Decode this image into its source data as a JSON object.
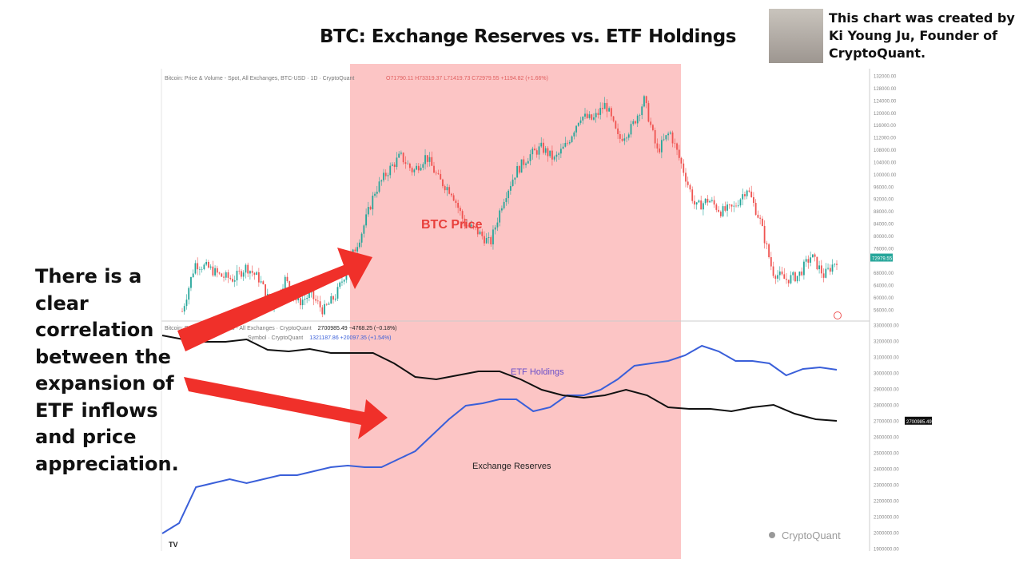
{
  "title": "BTC: Exchange Reserves vs. ETF Holdings",
  "credit": "This chart was created by Ki Young Ju, Founder of CryptoQuant.",
  "annotation": "There is a clear correlation between the expansion of ETF inflows and price appreciation.",
  "colors": {
    "highlight": "#fcc5c5",
    "arrow": "#f0302a",
    "etf": "#3a5fd9",
    "reserves": "#111111",
    "price_label": "#e8403c",
    "last_price_bg": "#26a69a"
  },
  "upper_header": {
    "title": "Bitcoin: Price & Volume - Spot, All Exchanges, BTC-USD · 1D · CryptoQuant",
    "ohlc": "O71790.11 H73319.37 L71419.73 C72979.55 +1194.82 (+1.66%)"
  },
  "lower_header": {
    "line1_title": "Bitcoin: Exchange Reserves - All Exchanges · CryptoQuant",
    "line1_values": "2700985.49 −4768.25 (−0.18%)",
    "line2_title": "Symbol · CryptoQuant",
    "line2_values": "1321187.86 +20097.35 (+1.54%)"
  },
  "watermark": "CryptoQuant",
  "tv_logo": "TV",
  "chart_data": [
    {
      "type": "line",
      "panel": "upper",
      "ylim": [
        54000,
        134000
      ],
      "y_ticks": [
        "132000.00",
        "128000.00",
        "124000.00",
        "120000.00",
        "116000.00",
        "112000.00",
        "108000.00",
        "104000.00",
        "100000.00",
        "96000.00",
        "92000.00",
        "88000.00",
        "84000.00",
        "80000.00",
        "76000.00",
        "68000.00",
        "64000.00",
        "60000.00",
        "56000.00"
      ],
      "last_value_label": "72979.55",
      "series": [
        {
          "name": "BTC Price",
          "values": [
            55500,
            71000,
            69700,
            67000,
            66000,
            70000,
            66000,
            56800,
            66000,
            58300,
            60900,
            55700,
            60900,
            71000,
            81400,
            94400,
            100900,
            106000,
            100900,
            106000,
            98200,
            94400,
            84000,
            81400,
            77500,
            91800,
            100900,
            106000,
            108700,
            104800,
            110000,
            119000,
            117700,
            122900,
            111200,
            115100,
            124200,
            107400,
            113800,
            102000,
            89200,
            91800,
            87900,
            89200,
            95700,
            85300,
            68400,
            65800,
            67100,
            73600,
            67100,
            72300
          ]
        }
      ]
    },
    {
      "type": "line",
      "panel": "lower",
      "ylim": [
        1900000,
        3300000
      ],
      "y_ticks": [
        "3300000.00",
        "3200000.00",
        "3100000.00",
        "3000000.00",
        "2900000.00",
        "2800000.00",
        "2700000.00",
        "2600000.00",
        "2500000.00",
        "2400000.00",
        "2300000.00",
        "2200000.00",
        "2100000.00",
        "2000000.00",
        "1900000.00"
      ],
      "last_value_label": "2700985.49",
      "series": [
        {
          "name": "ETF Holdings",
          "values": [
            1995000,
            2060000,
            2285000,
            2310000,
            2335000,
            2310000,
            2335000,
            2360000,
            2360000,
            2385000,
            2410000,
            2420000,
            2410000,
            2410000,
            2460000,
            2510000,
            2610000,
            2710000,
            2795000,
            2810000,
            2835000,
            2835000,
            2760000,
            2785000,
            2860000,
            2860000,
            2895000,
            2960000,
            3045000,
            3060000,
            3075000,
            3110000,
            3170000,
            3135000,
            3075000,
            3075000,
            3060000,
            2985000,
            3025000,
            3035000,
            3020000
          ]
        },
        {
          "name": "Exchange Reserves",
          "values": [
            3235000,
            3210000,
            3195000,
            3195000,
            3210000,
            3145000,
            3135000,
            3150000,
            3125000,
            3125000,
            3125000,
            3060000,
            2975000,
            2960000,
            2985000,
            3010000,
            3010000,
            2960000,
            2895000,
            2860000,
            2845000,
            2860000,
            2895000,
            2860000,
            2785000,
            2775000,
            2775000,
            2760000,
            2785000,
            2800000,
            2745000,
            2710000,
            2700000
          ]
        }
      ]
    }
  ]
}
